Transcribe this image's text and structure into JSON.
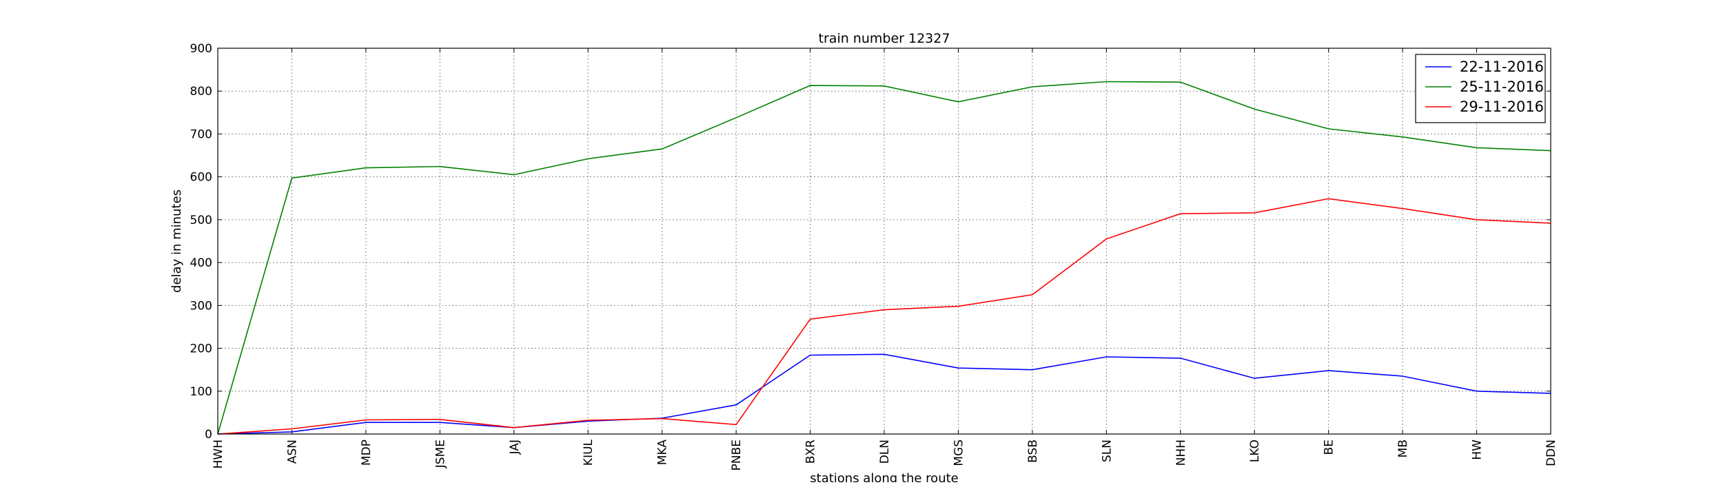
{
  "chart_data": {
    "type": "line",
    "title": "train number 12327",
    "xlabel": "stations along the route",
    "ylabel": "delay in minutes",
    "ylim": [
      0,
      900
    ],
    "yticks": [
      0,
      100,
      200,
      300,
      400,
      500,
      600,
      700,
      800,
      900
    ],
    "categories": [
      "HWH",
      "ASN",
      "MDP",
      "JSME",
      "JAJ",
      "KIUL",
      "MKA",
      "PNBE",
      "BXR",
      "DLN",
      "MGS",
      "BSB",
      "SLN",
      "NHH",
      "LKO",
      "BE",
      "MB",
      "HW",
      "DDN"
    ],
    "grid": true,
    "legend_position": "top-right",
    "series": [
      {
        "name": "22-11-2016",
        "color": "#0000ff",
        "values": [
          0,
          5,
          27,
          27,
          15,
          30,
          37,
          68,
          184,
          186,
          154,
          150,
          180,
          177,
          130,
          148,
          135,
          100,
          95
        ]
      },
      {
        "name": "25-11-2016",
        "color": "#008000",
        "values": [
          0,
          597,
          621,
          624,
          605,
          642,
          665,
          738,
          813,
          812,
          775,
          810,
          822,
          821,
          758,
          712,
          693,
          668,
          661
        ]
      },
      {
        "name": "29-11-2016",
        "color": "#ff0000",
        "values": [
          0,
          12,
          33,
          34,
          15,
          32,
          36,
          22,
          268,
          290,
          298,
          325,
          455,
          514,
          516,
          549,
          526,
          500,
          492
        ]
      }
    ]
  }
}
